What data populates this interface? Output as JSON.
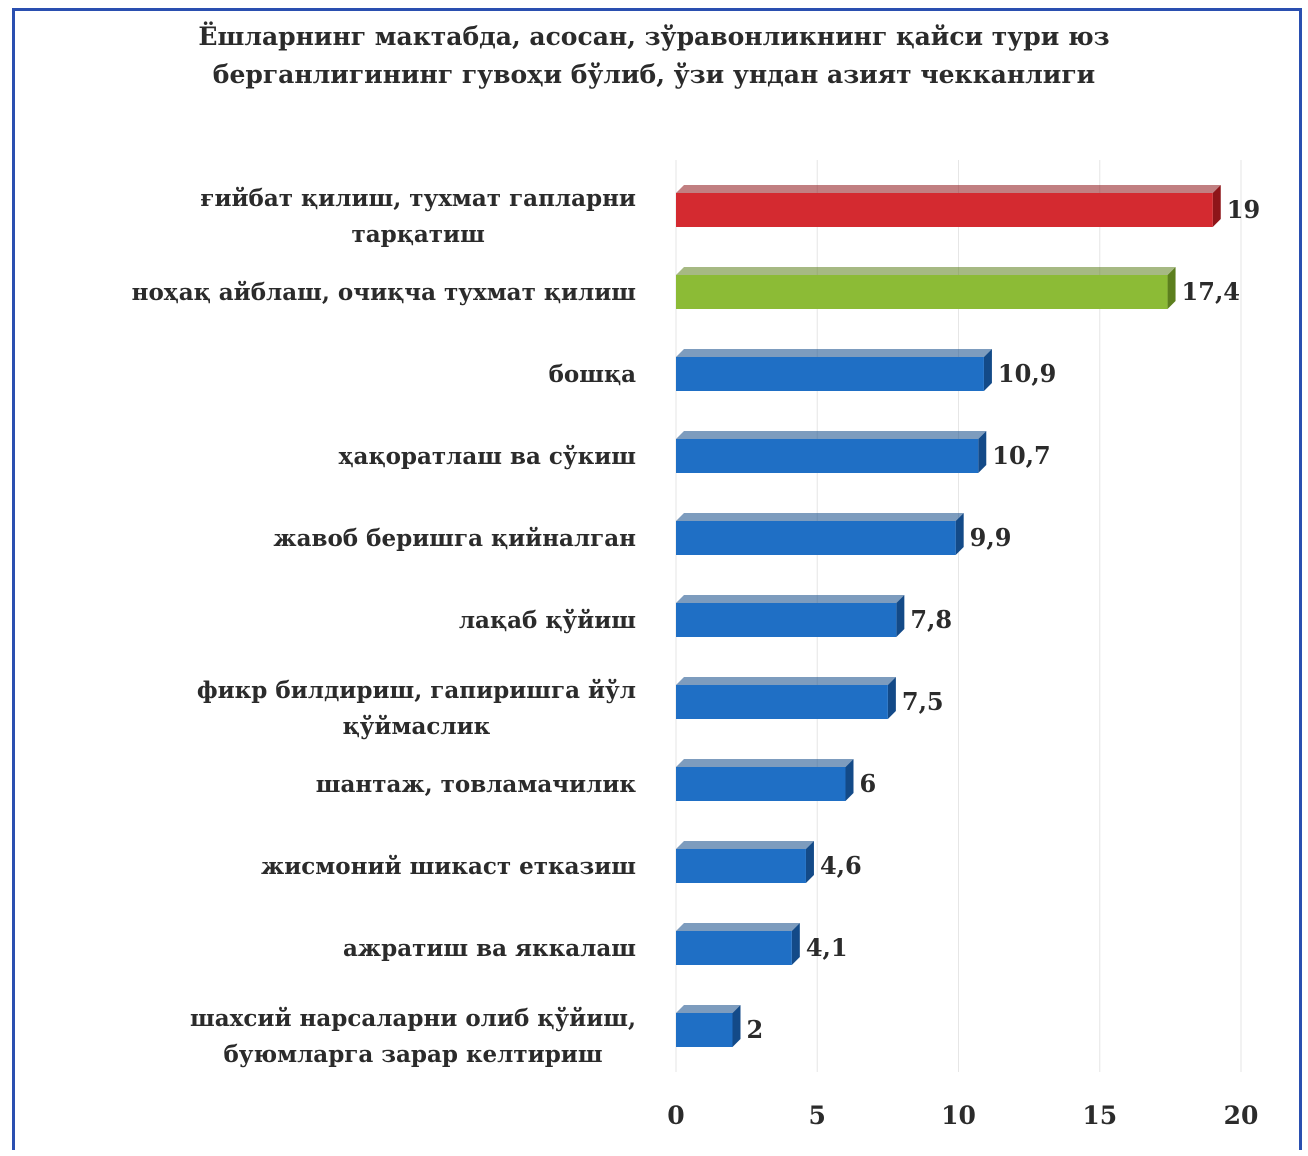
{
  "chart_data": {
    "type": "bar",
    "orientation": "horizontal",
    "title": "Ёшларнинг мактабда, асосан, зўравонликнинг қайси тури юз берганлигининг гувоҳи бўлиб, ўзи ундан азият чекканлиги",
    "title_lines": [
      "Ёшларнинг мактабда, асосан, зўравонликнинг қайси тури юз",
      "берганлигининг гувоҳи бўлиб, ўзи ундан азият чекканлиги"
    ],
    "categories": [
      [
        "ғийбат қилиш, тухмат гапларни",
        "тарқатиш"
      ],
      [
        "ноҳақ айблаш, очиқча тухмат қилиш"
      ],
      [
        "бошқа"
      ],
      [
        "ҳақоратлаш ва сўкиш"
      ],
      [
        "жавоб беришга қийналган"
      ],
      [
        "лақаб қўйиш"
      ],
      [
        "фикр билдириш, гапиришга йўл",
        "қўймаслик"
      ],
      [
        "шантаж, товламачилик"
      ],
      [
        "жисмоний шикаст етказиш"
      ],
      [
        "ажратиш ва яккалаш"
      ],
      [
        "шахсий нарсаларни олиб қўйиш,",
        "буюмларга зарар келтириш"
      ]
    ],
    "values": [
      19,
      17.4,
      10.9,
      10.7,
      9.9,
      7.8,
      7.5,
      6,
      4.6,
      4.1,
      2
    ],
    "value_labels": [
      "19",
      "17,4",
      "10,9",
      "10,7",
      "9,9",
      "7,8",
      "7,5",
      "6",
      "4,6",
      "4,1",
      "2"
    ],
    "bar_colors": [
      "#d42a30",
      "#8cbb36",
      "#1f6fc5",
      "#1f6fc5",
      "#1f6fc5",
      "#1f6fc5",
      "#1f6fc5",
      "#1f6fc5",
      "#1f6fc5",
      "#1f6fc5",
      "#1f6fc5"
    ],
    "bar_side_colors": [
      "#8e1519",
      "#5c7f1e",
      "#134a88",
      "#134a88",
      "#134a88",
      "#134a88",
      "#134a88",
      "#134a88",
      "#134a88",
      "#134a88",
      "#134a88"
    ],
    "xlim": [
      0,
      20
    ],
    "xticks": [
      0,
      5,
      10,
      15,
      20
    ],
    "grid": true,
    "legend": "none",
    "xlabel": "",
    "ylabel": ""
  },
  "colors": {
    "frame_border": "#2a4fb0",
    "text": "#2b2b2b",
    "grid": "#e6e6e6"
  }
}
